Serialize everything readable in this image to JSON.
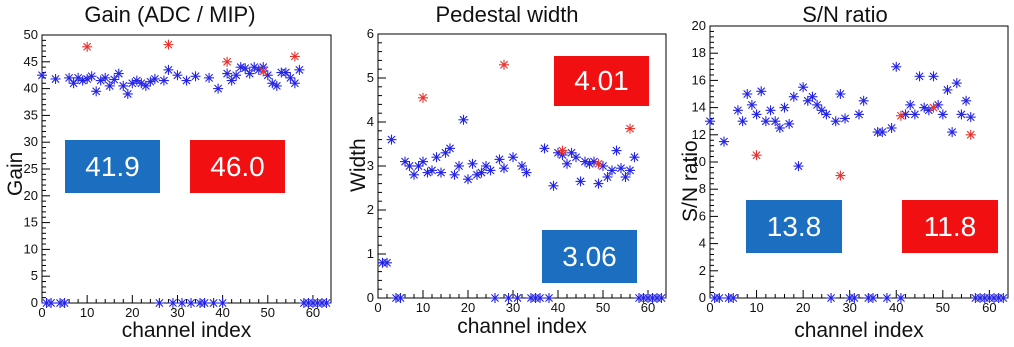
{
  "colors": {
    "blue_marker": "#2424e6",
    "red_marker": "#e8322e",
    "blue_box": "#1c6fc0",
    "red_box": "#f20f12"
  },
  "chart_data": [
    {
      "type": "scatter",
      "title": "Gain (ADC / MIP)",
      "xlabel": "channel index",
      "ylabel": "Gain",
      "xlim": [
        0,
        64
      ],
      "ylim": [
        0,
        50
      ],
      "xticks": [
        0,
        10,
        20,
        30,
        40,
        50,
        60
      ],
      "yticks": [
        0,
        5,
        10,
        15,
        20,
        25,
        30,
        35,
        40,
        45,
        50
      ],
      "marker": "asterisk",
      "grid": false,
      "boxes": [
        {
          "color": "blue",
          "text": "41.9"
        },
        {
          "color": "red",
          "text": "46.0"
        }
      ],
      "series": [
        {
          "color": "blue",
          "points": [
            [
              0,
              42.5
            ],
            [
              1,
              0
            ],
            [
              2,
              0
            ],
            [
              3,
              41.8
            ],
            [
              4,
              0
            ],
            [
              5,
              0
            ],
            [
              6,
              42
            ],
            [
              7,
              41
            ],
            [
              8,
              42
            ],
            [
              9,
              41.5
            ],
            [
              10,
              41.8
            ],
            [
              11,
              42.3
            ],
            [
              12,
              39.5
            ],
            [
              13,
              41.5
            ],
            [
              14,
              42
            ],
            [
              15,
              40.5
            ],
            [
              16,
              41.7
            ],
            [
              17,
              42.8
            ],
            [
              18,
              40.5
            ],
            [
              19,
              39
            ],
            [
              20,
              41
            ],
            [
              21,
              41.5
            ],
            [
              22,
              41
            ],
            [
              23,
              40.5
            ],
            [
              24,
              41.3
            ],
            [
              25,
              41.8
            ],
            [
              26,
              0
            ],
            [
              27,
              41.5
            ],
            [
              28,
              43.5
            ],
            [
              29,
              0
            ],
            [
              30,
              42.5
            ],
            [
              31,
              0
            ],
            [
              32,
              41.5
            ],
            [
              33,
              0
            ],
            [
              34,
              42.3
            ],
            [
              35,
              0
            ],
            [
              36,
              0
            ],
            [
              37,
              42
            ],
            [
              38,
              0
            ],
            [
              39,
              40
            ],
            [
              40,
              0
            ],
            [
              41,
              42.8
            ],
            [
              42,
              41.5
            ],
            [
              43,
              42.5
            ],
            [
              44,
              44
            ],
            [
              45,
              43.8
            ],
            [
              46,
              42.8
            ],
            [
              47,
              44
            ],
            [
              48,
              43.5
            ],
            [
              49,
              44
            ],
            [
              50,
              42.5
            ],
            [
              51,
              41
            ],
            [
              52,
              40.5
            ],
            [
              53,
              43
            ],
            [
              54,
              43
            ],
            [
              55,
              42
            ],
            [
              56,
              41
            ],
            [
              57,
              43.5
            ],
            [
              58,
              0
            ],
            [
              59,
              0
            ],
            [
              60,
              0
            ],
            [
              61,
              0
            ],
            [
              62,
              0
            ],
            [
              63,
              0
            ]
          ]
        },
        {
          "color": "red",
          "points": [
            [
              10,
              47.8
            ],
            [
              28,
              48.2
            ],
            [
              41,
              45
            ],
            [
              49,
              43.2
            ],
            [
              56,
              46
            ]
          ]
        }
      ]
    },
    {
      "type": "scatter",
      "title": "Pedestal width",
      "xlabel": "channel index",
      "ylabel": "Width",
      "xlim": [
        0,
        64
      ],
      "ylim": [
        0,
        6
      ],
      "xticks": [
        0,
        10,
        20,
        30,
        40,
        50,
        60
      ],
      "yticks": [
        0,
        1,
        2,
        3,
        4,
        5,
        6
      ],
      "marker": "asterisk",
      "grid": false,
      "boxes": [
        {
          "color": "red",
          "text": "4.01"
        },
        {
          "color": "blue",
          "text": "3.06"
        }
      ],
      "series": [
        {
          "color": "blue",
          "points": [
            [
              1,
              0.8
            ],
            [
              2,
              0.8
            ],
            [
              3,
              3.6
            ],
            [
              4,
              0
            ],
            [
              5,
              0
            ],
            [
              6,
              3.1
            ],
            [
              7,
              3
            ],
            [
              8,
              2.8
            ],
            [
              9,
              3
            ],
            [
              10,
              3.1
            ],
            [
              11,
              2.85
            ],
            [
              12,
              2.9
            ],
            [
              13,
              3.2
            ],
            [
              14,
              2.85
            ],
            [
              15,
              3.3
            ],
            [
              16,
              3.4
            ],
            [
              17,
              2.8
            ],
            [
              18,
              3
            ],
            [
              19,
              4.05
            ],
            [
              20,
              2.7
            ],
            [
              21,
              3.05
            ],
            [
              22,
              2.8
            ],
            [
              23,
              2.85
            ],
            [
              24,
              3
            ],
            [
              25,
              2.9
            ],
            [
              26,
              0
            ],
            [
              27,
              3.15
            ],
            [
              28,
              2.95
            ],
            [
              29,
              0
            ],
            [
              30,
              3.2
            ],
            [
              31,
              0
            ],
            [
              32,
              3
            ],
            [
              33,
              2.85
            ],
            [
              34,
              0
            ],
            [
              35,
              0
            ],
            [
              36,
              0
            ],
            [
              37,
              3.4
            ],
            [
              38,
              0
            ],
            [
              39,
              2.55
            ],
            [
              40,
              3.3
            ],
            [
              41,
              3.25
            ],
            [
              42,
              3.05
            ],
            [
              43,
              3.3
            ],
            [
              44,
              3.2
            ],
            [
              45,
              2.65
            ],
            [
              46,
              3.1
            ],
            [
              47,
              3.05
            ],
            [
              48,
              3.1
            ],
            [
              49,
              2.6
            ],
            [
              50,
              3
            ],
            [
              51,
              2.75
            ],
            [
              52,
              2.9
            ],
            [
              53,
              3.35
            ],
            [
              54,
              2.95
            ],
            [
              55,
              2.75
            ],
            [
              56,
              2.9
            ],
            [
              57,
              3.2
            ],
            [
              58,
              0
            ],
            [
              59,
              0
            ],
            [
              60,
              0
            ],
            [
              61,
              0
            ],
            [
              62,
              0
            ],
            [
              63,
              0
            ]
          ]
        },
        {
          "color": "red",
          "points": [
            [
              10,
              4.55
            ],
            [
              28,
              5.3
            ],
            [
              41,
              3.35
            ],
            [
              49,
              3.05
            ],
            [
              56,
              3.85
            ]
          ]
        }
      ]
    },
    {
      "type": "scatter",
      "title": "S/N ratio",
      "xlabel": "channel index",
      "ylabel": "S/N ratio",
      "xlim": [
        0,
        64
      ],
      "ylim": [
        0,
        20
      ],
      "xticks": [
        0,
        10,
        20,
        30,
        40,
        50,
        60
      ],
      "yticks": [
        0,
        2,
        4,
        6,
        8,
        10,
        12,
        14,
        16,
        18,
        20
      ],
      "marker": "asterisk",
      "grid": false,
      "boxes": [
        {
          "color": "blue",
          "text": "13.8"
        },
        {
          "color": "red",
          "text": "11.8"
        }
      ],
      "series": [
        {
          "color": "blue",
          "points": [
            [
              0,
              13
            ],
            [
              1,
              0
            ],
            [
              2,
              0
            ],
            [
              3,
              11.5
            ],
            [
              4,
              0
            ],
            [
              5,
              0
            ],
            [
              6,
              13.8
            ],
            [
              7,
              13
            ],
            [
              8,
              15
            ],
            [
              9,
              14.2
            ],
            [
              10,
              13.5
            ],
            [
              11,
              15.2
            ],
            [
              12,
              13
            ],
            [
              13,
              13.8
            ],
            [
              14,
              13
            ],
            [
              15,
              12.5
            ],
            [
              16,
              14
            ],
            [
              17,
              12.8
            ],
            [
              18,
              14.8
            ],
            [
              19,
              9.7
            ],
            [
              20,
              15.5
            ],
            [
              21,
              14.5
            ],
            [
              22,
              14.8
            ],
            [
              23,
              14.2
            ],
            [
              24,
              13.8
            ],
            [
              25,
              13.5
            ],
            [
              26,
              0
            ],
            [
              27,
              13
            ],
            [
              28,
              15
            ],
            [
              29,
              13.2
            ],
            [
              30,
              0
            ],
            [
              31,
              0
            ],
            [
              32,
              13.5
            ],
            [
              33,
              14.5
            ],
            [
              34,
              0
            ],
            [
              35,
              0
            ],
            [
              36,
              12.2
            ],
            [
              37,
              12.2
            ],
            [
              38,
              0
            ],
            [
              39,
              12.5
            ],
            [
              40,
              17
            ],
            [
              41,
              0
            ],
            [
              42,
              13.5
            ],
            [
              43,
              14.2
            ],
            [
              44,
              13.5
            ],
            [
              45,
              16.3
            ],
            [
              46,
              14
            ],
            [
              47,
              13.8
            ],
            [
              48,
              16.3
            ],
            [
              49,
              14.2
            ],
            [
              50,
              13.5
            ],
            [
              51,
              15.3
            ],
            [
              52,
              12.2
            ],
            [
              53,
              15.8
            ],
            [
              54,
              13.5
            ],
            [
              55,
              14.5
            ],
            [
              56,
              13.3
            ],
            [
              57,
              0
            ],
            [
              58,
              0
            ],
            [
              59,
              0
            ],
            [
              60,
              0
            ],
            [
              61,
              0
            ],
            [
              62,
              0
            ],
            [
              63,
              0
            ]
          ]
        },
        {
          "color": "red",
          "points": [
            [
              10,
              10.5
            ],
            [
              28,
              9
            ],
            [
              41,
              13.4
            ],
            [
              48,
              14
            ],
            [
              56,
              12
            ]
          ]
        }
      ]
    }
  ]
}
